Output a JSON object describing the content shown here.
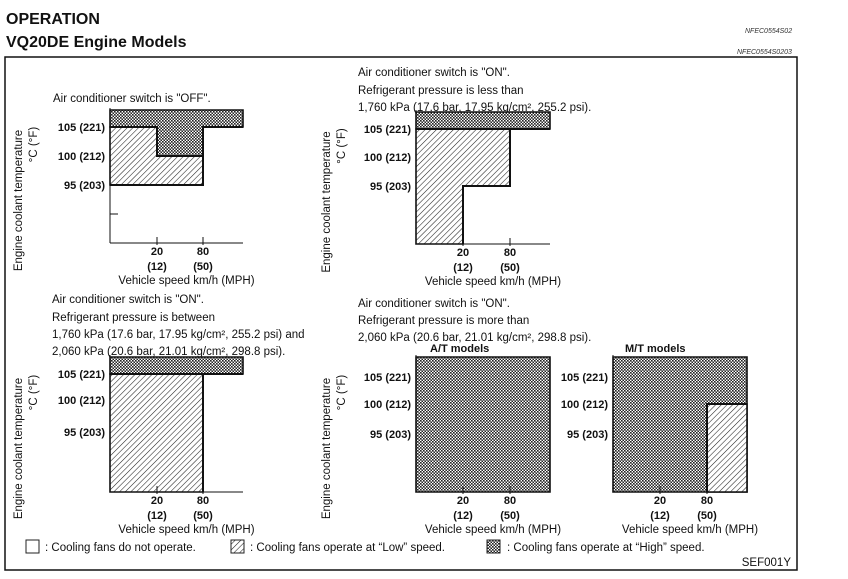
{
  "header": {
    "section_title": "OPERATION",
    "subtitle": "VQ20DE Engine Models",
    "code_1": "NFEC0554S02",
    "code_2": "NFEC0554S0203"
  },
  "axis": {
    "y_label": "Engine coolant temperature",
    "y_unit": "°C (°F)",
    "y_ticks": [
      "105 (221)",
      "100 (212)",
      "95 (203)"
    ],
    "x_ticks_kmh": [
      "20",
      "80"
    ],
    "x_ticks_mph": [
      "(12)",
      "(50)"
    ],
    "x_label": "Vehicle speed km/h (MPH)"
  },
  "charts": [
    {
      "caption": [
        "Air conditioner switch is \"OFF\"."
      ]
    },
    {
      "caption": [
        "Air conditioner switch is \"ON\".",
        "Refrigerant pressure is less than",
        "1,760 kPa (17.6 bar, 17.95 kg/cm², 255.2 psi)."
      ]
    },
    {
      "caption": [
        "Air conditioner switch is \"ON\".",
        "Refrigerant pressure is between",
        "1,760 kPa (17.6 bar, 17.95 kg/cm², 255.2 psi) and",
        "2,060 kPa (20.6 bar, 21.01 kg/cm², 298.8 psi)."
      ]
    },
    {
      "caption": [
        "Air conditioner switch is \"ON\".",
        "Refrigerant pressure is more than",
        "2,060 kPa (20.6 bar, 21.01 kg/cm², 298.8 psi)."
      ],
      "subtitle": "A/T models"
    },
    {
      "caption": [],
      "subtitle": "M/T models"
    }
  ],
  "legend": {
    "off": ": Cooling fans do not operate.",
    "low": ": Cooling fans operate at “Low” speed.",
    "high": ": Cooling fans operate at “High” speed."
  },
  "figure_id": "SEF001Y"
}
